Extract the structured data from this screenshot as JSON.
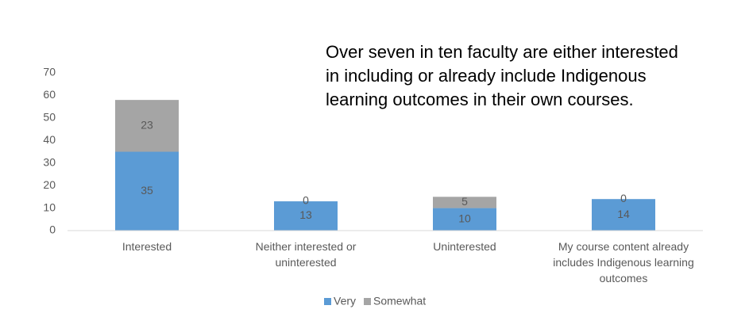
{
  "chart_data": {
    "type": "stacked-bar",
    "annotation": [
      "Over seven in ten faculty are either interested",
      "in including or already include Indigenous",
      "learning outcomes in their own courses."
    ],
    "categories": [
      "Interested",
      "Neither interested or uninterested",
      "Uninterested",
      "My course content already includes Indigenous learning outcomes"
    ],
    "series": [
      {
        "name": "Very",
        "color": "#5b9bd5",
        "values": [
          35,
          13,
          10,
          14
        ]
      },
      {
        "name": "Somewhat",
        "color": "#a5a5a5",
        "values": [
          23,
          0,
          5,
          0
        ]
      }
    ],
    "ylim": [
      0,
      70
    ],
    "yticks": [
      0,
      10,
      20,
      30,
      40,
      50,
      60,
      70
    ],
    "grid": false,
    "legend": "bottom"
  }
}
